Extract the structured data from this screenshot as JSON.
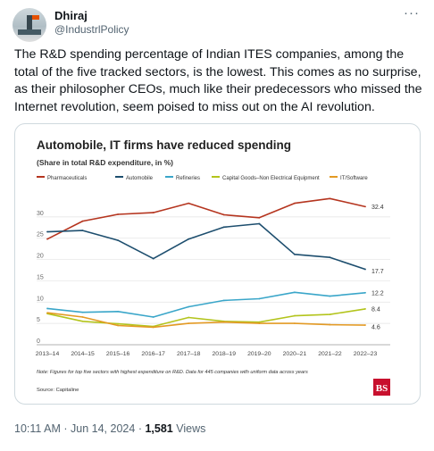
{
  "author": {
    "name": "Dhiraj",
    "handle": "@IndustrlPolicy",
    "avatar_icon": "oil-rig-avatar"
  },
  "more_icon": "···",
  "tweet_text": "The R&D spending percentage of Indian ITES companies, among the total of the five tracked sectors, is the lowest. This comes as no surprise, as their philosopher CEOs, much like their predecessors who missed the Internet revolution, seem poised to miss out on the AI revolution.",
  "footer": {
    "time": "10:11 AM",
    "sep1": "·",
    "date": "Jun 14, 2024",
    "sep2": "·",
    "views_count": "1,581",
    "views_label": "Views"
  },
  "chart_data": {
    "type": "line",
    "title": "Automobile, IT firms have reduced spending",
    "subtitle": "(Share in total R&D expenditure, in %)",
    "categories": [
      "2013–14",
      "2014–15",
      "2015–16",
      "2016–17",
      "2017–18",
      "2018–19",
      "2019–20",
      "2020–21",
      "2021–22",
      "2022–23"
    ],
    "series": [
      {
        "name": "Pharmaceuticals",
        "color": "#b5351f",
        "values": [
          24.8,
          29.0,
          30.6,
          31.0,
          33.2,
          30.5,
          29.8,
          33.2,
          34.3,
          32.4
        ],
        "end_label": "32.4"
      },
      {
        "name": "Automobile",
        "color": "#1d4e6e",
        "values": [
          26.5,
          26.8,
          24.5,
          20.2,
          24.8,
          27.6,
          28.4,
          21.2,
          20.5,
          17.7
        ],
        "end_label": "17.7"
      },
      {
        "name": "Refineries",
        "color": "#3aa6c9",
        "values": [
          8.5,
          7.6,
          7.8,
          6.5,
          8.9,
          10.4,
          10.8,
          12.3,
          11.4,
          12.2
        ],
        "end_label": "12.2"
      },
      {
        "name": "Capital Goods–Non Electrical Equipment",
        "color": "#b3c41c",
        "values": [
          7.3,
          5.5,
          4.9,
          4.3,
          6.4,
          5.5,
          5.3,
          6.8,
          7.1,
          8.4
        ],
        "end_label": "8.4"
      },
      {
        "name": "IT/Software",
        "color": "#e39a24",
        "values": [
          7.5,
          6.5,
          4.5,
          4.1,
          5.0,
          5.3,
          5.0,
          5.0,
          4.7,
          4.6
        ],
        "end_label": "4.6"
      }
    ],
    "yticks": [
      0,
      5,
      10,
      15,
      20,
      25,
      30
    ],
    "ylim": [
      0,
      35
    ],
    "grid": true,
    "legend_position": "top",
    "note": "Note: Figures for top five sectors with highest expenditure on R&D. Data for 445 companies with uniform data across years",
    "source": "Source: Capitaline",
    "logo": "BS"
  }
}
